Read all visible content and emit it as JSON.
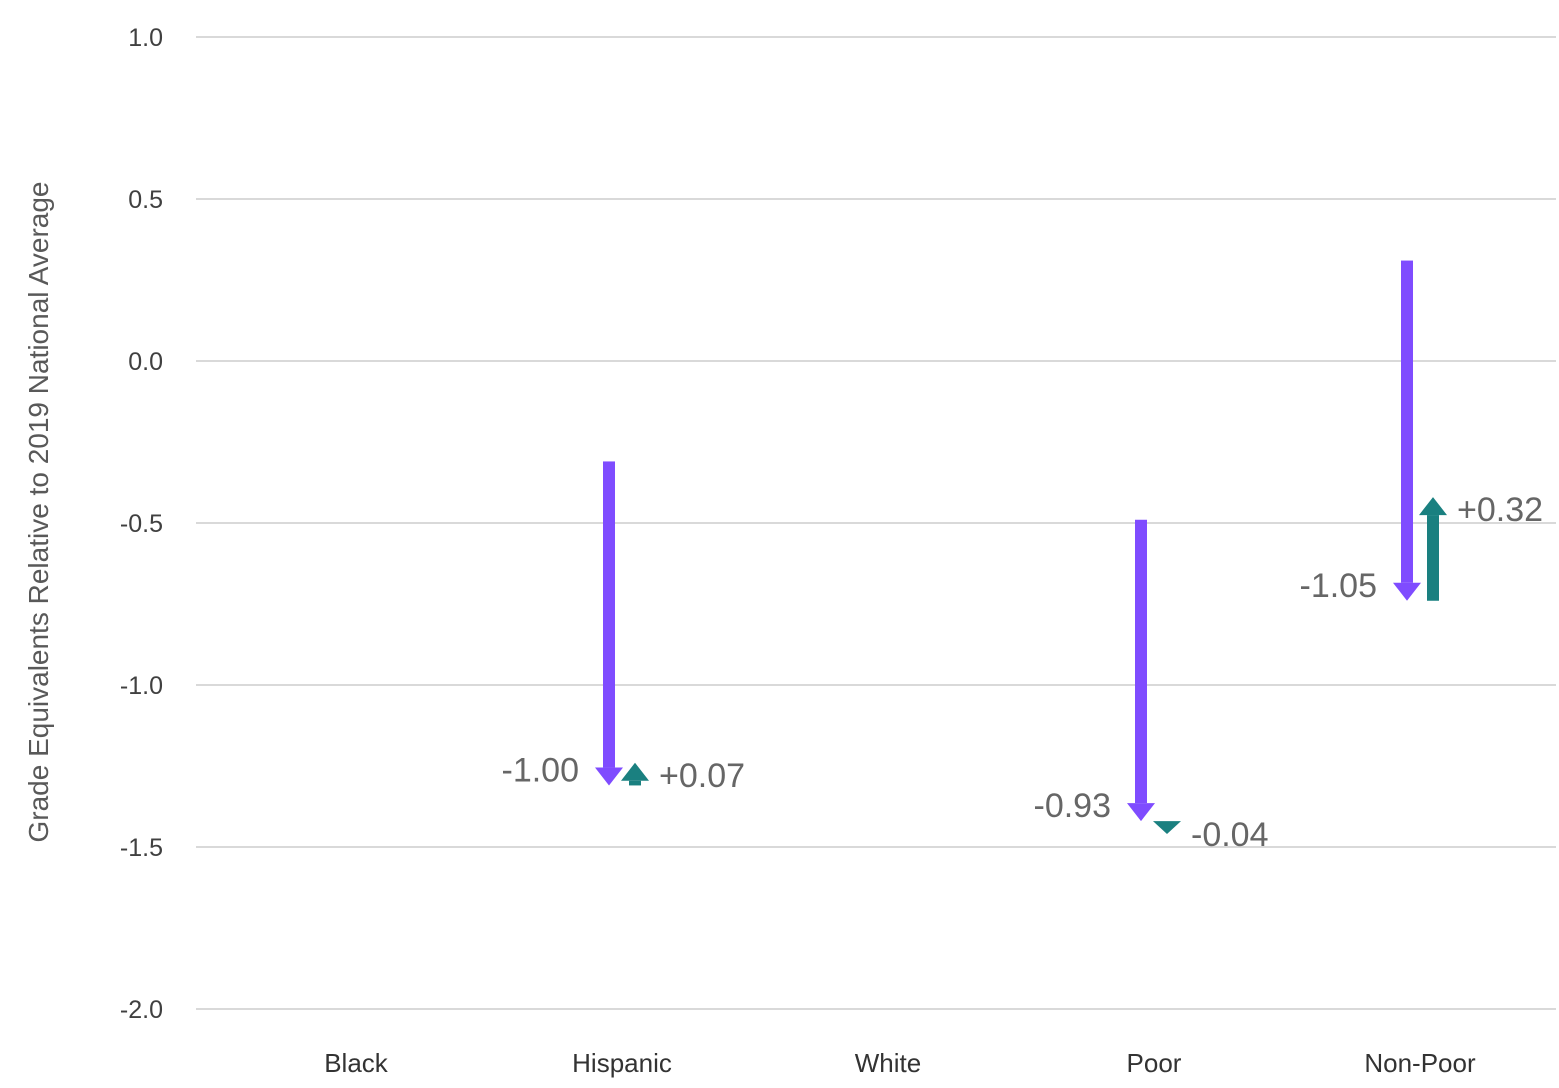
{
  "chart_data": {
    "type": "arrow",
    "ylabel": "Grade Equivalents Relative to 2019 National Average",
    "ylim": [
      -2.0,
      1.0
    ],
    "yticks": [
      "1.0",
      "0.5",
      "0.0",
      "-0.5",
      "-1.0",
      "-1.5",
      "-2.0"
    ],
    "ytick_values": [
      1.0,
      0.5,
      0.0,
      -0.5,
      -1.0,
      -1.5,
      -2.0
    ],
    "categories": [
      "Black",
      "Hispanic",
      "White",
      "Poor",
      "Non-Poor"
    ],
    "grid": true,
    "colors": {
      "decline": "#7f4cff",
      "change": "#1a8080",
      "grid": "#d9d9d9"
    },
    "series": [
      {
        "points": [
          null,
          {
            "start": -0.31,
            "end": -1.31,
            "label": "-1.00"
          },
          null,
          {
            "start": -0.49,
            "end": -1.42,
            "label": "-0.93"
          },
          {
            "start": 0.31,
            "end": -0.74,
            "label": "-1.05"
          }
        ]
      },
      {
        "points": [
          null,
          {
            "start": -1.31,
            "end": -1.24,
            "label": "+0.07"
          },
          null,
          {
            "start": -1.42,
            "end": -1.46,
            "label": "-0.04"
          },
          {
            "start": -0.74,
            "end": -0.42,
            "label": "+0.32"
          }
        ]
      }
    ]
  }
}
